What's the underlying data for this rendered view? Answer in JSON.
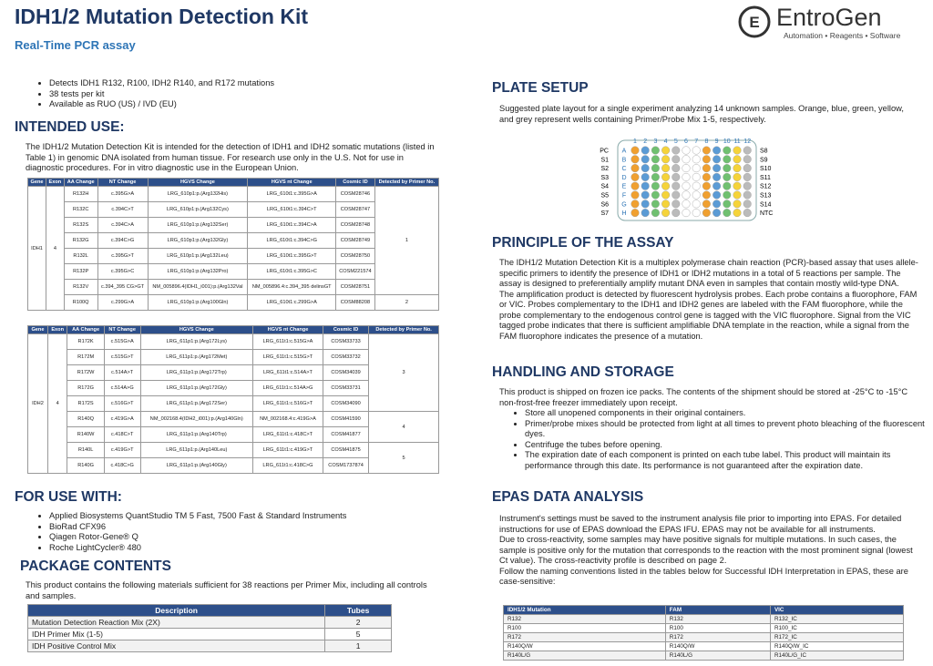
{
  "header": {
    "title": "IDH1/2 Mutation Detection Kit",
    "subtitle": "Real-Time PCR assay",
    "logo": {
      "name": "EntroGen",
      "tagline": "Automation • Reagents • Software"
    }
  },
  "features": [
    "Detects IDH1 R132, R100, IDH2 R140, and R172 mutations",
    "38 tests per kit",
    "Available as RUO (US) / IVD (EU)"
  ],
  "intended_use": {
    "heading": "INTENDED USE:",
    "text": "The IDH1/2 Mutation Detection Kit is intended for the detection of IDH1 and IDH2 somatic mutations (listed in Table 1) in genomic DNA isolated from human tissue. For research use only in the U.S. Not for use in diagnostic procedures. For in vitro diagnostic use in the European Union.",
    "idh1_table": {
      "headers": [
        "Gene",
        "Exon",
        "AA Change",
        "NT Change",
        "HGVS Change",
        "HGVS nt Change",
        "Cosmic ID",
        "Detected by Primer No."
      ],
      "gene": "IDH1",
      "exon": "4",
      "groups": [
        {
          "detected": "1",
          "rows": [
            [
              "R132H",
              "c.395G>A",
              "LRG_610p1:p.(Arg132His)",
              "LRG_610t1:c.395G>A",
              "COSM28746"
            ],
            [
              "R132C",
              "c.394C>T",
              "LRG_610p1:p.(Arg132Cys)",
              "LRG_610t1:c.394C>T",
              "COSM28747"
            ],
            [
              "R132S",
              "c.394C>A",
              "LRG_610p1:p.(Arg132Ser)",
              "LRG_610t1:c.394C>A",
              "COSM28748"
            ],
            [
              "R132G",
              "c.394C>G",
              "LRG_610p1:p.(Arg132Gly)",
              "LRG_610t1:c.394C>G",
              "COSM28749"
            ],
            [
              "R132L",
              "c.395G>T",
              "LRG_610p1:p.(Arg132Leu)",
              "LRG_610t1:c.395G>T",
              "COSM28750"
            ],
            [
              "R132P",
              "c.395G>C",
              "LRG_610p1:p.(Arg132Pro)",
              "LRG_610t1:c.395G>C",
              "COSM221574"
            ],
            [
              "R132V",
              "c.394_395 CG>GT",
              "NM_005896.4(IDH1_i001):p.(Arg132Val",
              "NM_005896.4:c.394_395 delinsGT",
              "COSM28751"
            ]
          ]
        },
        {
          "detected": "2",
          "rows": [
            [
              "R100Q",
              "c.299G>A",
              "LRG_610p1:p.(Arg100Gln)",
              "LRG_610t1:c.299G>A",
              "COSM88208"
            ]
          ]
        }
      ]
    },
    "idh2_table": {
      "headers": [
        "Gene",
        "Exon",
        "AA Change",
        "NT Change",
        "HGVS Change",
        "HGVS nt Change",
        "Cosmic ID",
        "Detected by Primer No."
      ],
      "gene": "IDH2",
      "exon": "4",
      "groups": [
        {
          "detected": "3",
          "rows": [
            [
              "R172K",
              "c.515G>A",
              "LRG_611p1:p.(Arg172Lys)",
              "LRG_611t1:c.515G>A",
              "COSM33733"
            ],
            [
              "R172M",
              "c.515G>T",
              "LRG_611p1:p.(Arg172Met)",
              "LRG_611t1:c.515G>T",
              "COSM33732"
            ],
            [
              "R172W",
              "c.514A>T",
              "LRG_611p1:p.(Arg172Trp)",
              "LRG_611t1:c.514A>T",
              "COSM34039"
            ],
            [
              "R172G",
              "c.514A>G",
              "LRG_611p1:p.(Arg172Gly)",
              "LRG_611t1:c.514A>G",
              "COSM33731"
            ],
            [
              "R172S",
              "c.516G>T",
              "LRG_611p1:p.(Arg172Ser)",
              "LRG_611t1:c.516G>T",
              "COSM34090"
            ]
          ]
        },
        {
          "detected": "4",
          "rows": [
            [
              "R140Q",
              "c.419G>A",
              "NM_002168.4(IDH2_i001):p.(Arg140Gln)",
              "NM_002168.4:c.419G>A",
              "COSM41590"
            ],
            [
              "R140W",
              "c.418C>T",
              "LRG_611p1:p.(Arg140Trp)",
              "LRG_611t1:c.418C>T",
              "COSM41877"
            ]
          ]
        },
        {
          "detected": "5",
          "rows": [
            [
              "R140L",
              "c.419G>T",
              "LRG_611p1:p.(Arg140Leu)",
              "LRG_611t1:c.419G>T",
              "COSM41875"
            ],
            [
              "R140G",
              "c.418C>G",
              "LRG_611p1:p.(Arg140Gly)",
              "LRG_611t1:c.418C>G",
              "COSM1737874"
            ]
          ]
        }
      ]
    }
  },
  "for_use_with": {
    "heading": "FOR USE WITH:",
    "items": [
      "Applied Biosystems QuantStudio TM 5 Fast, 7500 Fast & Standard Instruments",
      "BioRad CFX96",
      "Qiagen Rotor-Gene® Q",
      "Roche LightCycler® 480"
    ]
  },
  "package": {
    "heading": "PACKAGE CONTENTS",
    "text": "This product contains the following materials sufficient for 38 reactions per Primer Mix, including all controls and samples.",
    "table": {
      "headers": [
        "Description",
        "Tubes"
      ],
      "rows": [
        [
          "Mutation Detection Reaction Mix (2X)",
          "2"
        ],
        [
          "IDH Primer Mix (1-5)",
          "5"
        ],
        [
          "IDH Positive Control Mix",
          "1"
        ]
      ]
    }
  },
  "plate": {
    "heading": "PLATE SETUP",
    "text": "Suggested plate layout for a single experiment analyzing 14 unknown samples. Orange, blue, green, yellow, and grey represent wells containing Primer/Probe Mix 1-5, respectively.",
    "columns": [
      "1",
      "2",
      "3",
      "4",
      "5",
      "6",
      "7",
      "8",
      "9",
      "10",
      "11",
      "12"
    ],
    "rows": [
      "A",
      "B",
      "C",
      "D",
      "E",
      "F",
      "G",
      "H"
    ],
    "left_labels": [
      "PC",
      "S1",
      "S2",
      "S3",
      "S4",
      "S5",
      "S6",
      "S7"
    ],
    "right_labels": [
      "S8",
      "S9",
      "S10",
      "S11",
      "S12",
      "S13",
      "S14",
      "NTC"
    ]
  },
  "principle": {
    "heading": "PRINCIPLE OF THE ASSAY",
    "paragraphs": [
      "The IDH1/2 Mutation Detection Kit is a multiplex polymerase chain reaction (PCR)-based assay that uses allele-specific primers to identify the presence of IDH1 or IDH2 mutations in a total of 5 reactions per sample. The assay is designed to preferentially amplify mutant DNA even in samples that contain mostly wild-type DNA.",
      "The amplification product is detected by fluorescent hydrolysis probes. Each probe contains a fluorophore, FAM or VIC. Probes complementary to the IDH1 and IDH2 genes are labeled with the FAM fluorophore, while the probe complementary to the endogenous control gene is tagged with the VIC fluorophore. Signal from the VIC tagged probe indicates that there is sufficient amplifiable DNA template in the reaction, while a signal from the FAM fluorophore indicates the presence of a mutation."
    ]
  },
  "handling": {
    "heading": "HANDLING AND STORAGE",
    "text": "This product is shipped on frozen ice packs. The contents of the shipment should be stored at -25°C to -15°C non-frost-free freezer immediately upon receipt.",
    "items": [
      "Store all unopened components in their original containers.",
      "Primer/probe mixes should be protected from light at all times to prevent photo bleaching of the fluorescent dyes.",
      "Centrifuge the tubes before opening.",
      "The expiration date of each component is printed on each tube label. This product will maintain its performance through this date. Its performance is not guaranteed after the expiration date."
    ]
  },
  "epas": {
    "heading": "EPAS DATA ANALYSIS",
    "paragraphs": [
      "Instrument's settings must be saved to the instrument analysis file prior to importing into EPAS. For detailed instructions for use of EPAS download the EPAS IFU. EPAS may not be available for all instruments.",
      "Due to cross-reactivity, some samples may have positive signals for multiple mutations. In such cases, the sample is positive only for the mutation that corresponds to the reaction with the most prominent signal (lowest Ct value). The cross-reactivity profile is described on page 2.",
      "Follow the naming conventions listed in the tables below for Successful IDH Interpretation in EPAS, these are case-sensitive:"
    ],
    "table": {
      "headers": [
        "IDH1/2 Mutation",
        "FAM",
        "VIC"
      ],
      "rows": [
        [
          "R132",
          "R132",
          "R132_IC"
        ],
        [
          "R100",
          "R100",
          "R100_IC"
        ],
        [
          "R172",
          "R172",
          "R172_IC"
        ],
        [
          "R140Q/W",
          "R140Q/W",
          "R140Q/W_IC"
        ],
        [
          "R140L/G",
          "R140L/G",
          "R140L/G_IC"
        ]
      ]
    }
  }
}
